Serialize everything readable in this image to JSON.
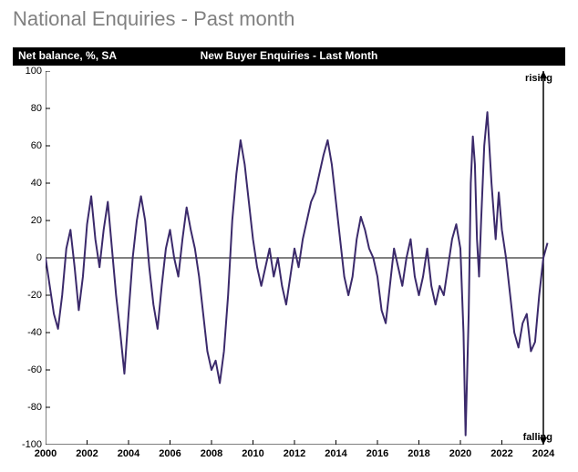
{
  "page_title": "National Enquiries - Past month",
  "banner_left": "Net balance, %, SA",
  "banner_center": "New Buyer Enquiries - Last Month",
  "chart": {
    "type": "line",
    "line_color": "#3b2a6b",
    "line_width": 2,
    "axis_color": "#000000",
    "zero_line_color": "#000000",
    "background_color": "#ffffff",
    "ylim": [
      -100,
      100
    ],
    "ytick_step": 20,
    "xlim": [
      2000,
      2024
    ],
    "xticks": [
      2000,
      2002,
      2004,
      2006,
      2008,
      2010,
      2012,
      2014,
      2016,
      2018,
      2020,
      2022,
      2024
    ],
    "rising_label": "rising",
    "falling_label": "falling",
    "series": [
      {
        "x": 2000.0,
        "y": 0
      },
      {
        "x": 2000.2,
        "y": -15
      },
      {
        "x": 2000.4,
        "y": -30
      },
      {
        "x": 2000.6,
        "y": -38
      },
      {
        "x": 2000.8,
        "y": -20
      },
      {
        "x": 2001.0,
        "y": 5
      },
      {
        "x": 2001.2,
        "y": 15
      },
      {
        "x": 2001.4,
        "y": -5
      },
      {
        "x": 2001.6,
        "y": -28
      },
      {
        "x": 2001.8,
        "y": -10
      },
      {
        "x": 2002.0,
        "y": 18
      },
      {
        "x": 2002.2,
        "y": 33
      },
      {
        "x": 2002.4,
        "y": 10
      },
      {
        "x": 2002.6,
        "y": -5
      },
      {
        "x": 2002.8,
        "y": 15
      },
      {
        "x": 2003.0,
        "y": 30
      },
      {
        "x": 2003.2,
        "y": 5
      },
      {
        "x": 2003.4,
        "y": -20
      },
      {
        "x": 2003.6,
        "y": -40
      },
      {
        "x": 2003.8,
        "y": -62
      },
      {
        "x": 2004.0,
        "y": -30
      },
      {
        "x": 2004.2,
        "y": 0
      },
      {
        "x": 2004.4,
        "y": 20
      },
      {
        "x": 2004.6,
        "y": 33
      },
      {
        "x": 2004.8,
        "y": 20
      },
      {
        "x": 2005.0,
        "y": -5
      },
      {
        "x": 2005.2,
        "y": -25
      },
      {
        "x": 2005.4,
        "y": -38
      },
      {
        "x": 2005.6,
        "y": -15
      },
      {
        "x": 2005.8,
        "y": 5
      },
      {
        "x": 2006.0,
        "y": 15
      },
      {
        "x": 2006.2,
        "y": 0
      },
      {
        "x": 2006.4,
        "y": -10
      },
      {
        "x": 2006.6,
        "y": 10
      },
      {
        "x": 2006.8,
        "y": 27
      },
      {
        "x": 2007.0,
        "y": 15
      },
      {
        "x": 2007.2,
        "y": 5
      },
      {
        "x": 2007.4,
        "y": -10
      },
      {
        "x": 2007.6,
        "y": -30
      },
      {
        "x": 2007.8,
        "y": -50
      },
      {
        "x": 2008.0,
        "y": -60
      },
      {
        "x": 2008.2,
        "y": -55
      },
      {
        "x": 2008.4,
        "y": -67
      },
      {
        "x": 2008.6,
        "y": -50
      },
      {
        "x": 2008.8,
        "y": -20
      },
      {
        "x": 2009.0,
        "y": 20
      },
      {
        "x": 2009.2,
        "y": 45
      },
      {
        "x": 2009.4,
        "y": 63
      },
      {
        "x": 2009.6,
        "y": 50
      },
      {
        "x": 2009.8,
        "y": 30
      },
      {
        "x": 2010.0,
        "y": 10
      },
      {
        "x": 2010.2,
        "y": -5
      },
      {
        "x": 2010.4,
        "y": -15
      },
      {
        "x": 2010.6,
        "y": -5
      },
      {
        "x": 2010.8,
        "y": 5
      },
      {
        "x": 2011.0,
        "y": -10
      },
      {
        "x": 2011.2,
        "y": 0
      },
      {
        "x": 2011.4,
        "y": -15
      },
      {
        "x": 2011.6,
        "y": -25
      },
      {
        "x": 2011.8,
        "y": -10
      },
      {
        "x": 2012.0,
        "y": 5
      },
      {
        "x": 2012.2,
        "y": -5
      },
      {
        "x": 2012.4,
        "y": 10
      },
      {
        "x": 2012.6,
        "y": 20
      },
      {
        "x": 2012.8,
        "y": 30
      },
      {
        "x": 2013.0,
        "y": 35
      },
      {
        "x": 2013.2,
        "y": 45
      },
      {
        "x": 2013.4,
        "y": 55
      },
      {
        "x": 2013.6,
        "y": 63
      },
      {
        "x": 2013.8,
        "y": 50
      },
      {
        "x": 2014.0,
        "y": 30
      },
      {
        "x": 2014.2,
        "y": 10
      },
      {
        "x": 2014.4,
        "y": -10
      },
      {
        "x": 2014.6,
        "y": -20
      },
      {
        "x": 2014.8,
        "y": -10
      },
      {
        "x": 2015.0,
        "y": 10
      },
      {
        "x": 2015.2,
        "y": 22
      },
      {
        "x": 2015.4,
        "y": 15
      },
      {
        "x": 2015.6,
        "y": 5
      },
      {
        "x": 2015.8,
        "y": 0
      },
      {
        "x": 2016.0,
        "y": -10
      },
      {
        "x": 2016.2,
        "y": -28
      },
      {
        "x": 2016.4,
        "y": -35
      },
      {
        "x": 2016.6,
        "y": -15
      },
      {
        "x": 2016.8,
        "y": 5
      },
      {
        "x": 2017.0,
        "y": -5
      },
      {
        "x": 2017.2,
        "y": -15
      },
      {
        "x": 2017.4,
        "y": 0
      },
      {
        "x": 2017.6,
        "y": 10
      },
      {
        "x": 2017.8,
        "y": -10
      },
      {
        "x": 2018.0,
        "y": -20
      },
      {
        "x": 2018.2,
        "y": -10
      },
      {
        "x": 2018.4,
        "y": 5
      },
      {
        "x": 2018.6,
        "y": -15
      },
      {
        "x": 2018.8,
        "y": -25
      },
      {
        "x": 2019.0,
        "y": -15
      },
      {
        "x": 2019.2,
        "y": -20
      },
      {
        "x": 2019.4,
        "y": -5
      },
      {
        "x": 2019.6,
        "y": 10
      },
      {
        "x": 2019.8,
        "y": 18
      },
      {
        "x": 2020.0,
        "y": 5
      },
      {
        "x": 2020.15,
        "y": -40
      },
      {
        "x": 2020.25,
        "y": -95
      },
      {
        "x": 2020.4,
        "y": -30
      },
      {
        "x": 2020.5,
        "y": 40
      },
      {
        "x": 2020.6,
        "y": 65
      },
      {
        "x": 2020.7,
        "y": 50
      },
      {
        "x": 2020.8,
        "y": 10
      },
      {
        "x": 2020.9,
        "y": -10
      },
      {
        "x": 2021.0,
        "y": 20
      },
      {
        "x": 2021.15,
        "y": 60
      },
      {
        "x": 2021.3,
        "y": 78
      },
      {
        "x": 2021.5,
        "y": 40
      },
      {
        "x": 2021.7,
        "y": 10
      },
      {
        "x": 2021.85,
        "y": 35
      },
      {
        "x": 2022.0,
        "y": 15
      },
      {
        "x": 2022.2,
        "y": 0
      },
      {
        "x": 2022.4,
        "y": -20
      },
      {
        "x": 2022.6,
        "y": -40
      },
      {
        "x": 2022.8,
        "y": -48
      },
      {
        "x": 2023.0,
        "y": -35
      },
      {
        "x": 2023.2,
        "y": -30
      },
      {
        "x": 2023.4,
        "y": -50
      },
      {
        "x": 2023.6,
        "y": -45
      },
      {
        "x": 2023.8,
        "y": -20
      },
      {
        "x": 2024.0,
        "y": 0
      },
      {
        "x": 2024.2,
        "y": 8
      }
    ]
  }
}
